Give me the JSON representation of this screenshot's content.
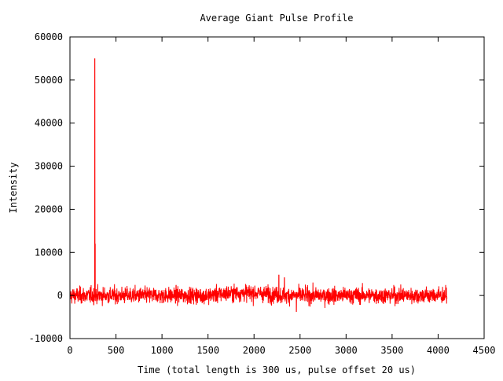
{
  "chart_data": {
    "type": "line",
    "title": "Average Giant Pulse Profile",
    "xlabel": "Time (total length is 300 us, pulse offset 20 us)",
    "ylabel": "Intensity",
    "xlim": [
      0,
      4500
    ],
    "ylim": [
      -10000,
      60000
    ],
    "x_ticks": [
      0,
      500,
      1000,
      1500,
      2000,
      2500,
      3000,
      3500,
      4000,
      4500
    ],
    "y_ticks": [
      -10000,
      0,
      10000,
      20000,
      30000,
      40000,
      50000,
      60000
    ],
    "x_tick_labels": [
      "0",
      "500",
      "1000",
      "1500",
      "2000",
      "2500",
      "3000",
      "3500",
      "4000",
      "4500"
    ],
    "y_tick_labels": [
      "-10000",
      "0",
      "10000",
      "20000",
      "30000",
      "40000",
      "50000",
      "60000"
    ],
    "grid": false,
    "legend": "none",
    "series": [
      {
        "color": "#ff0000",
        "x_range": [
          0,
          4096
        ],
        "noise_amplitude": 1500,
        "spikes": [
          {
            "x": 270,
            "y": 55000
          },
          {
            "x": 275,
            "y": 12000
          },
          {
            "x": 2270,
            "y": 4800
          },
          {
            "x": 2330,
            "y": 4200
          },
          {
            "x": 2460,
            "y": -3800
          }
        ]
      }
    ]
  }
}
